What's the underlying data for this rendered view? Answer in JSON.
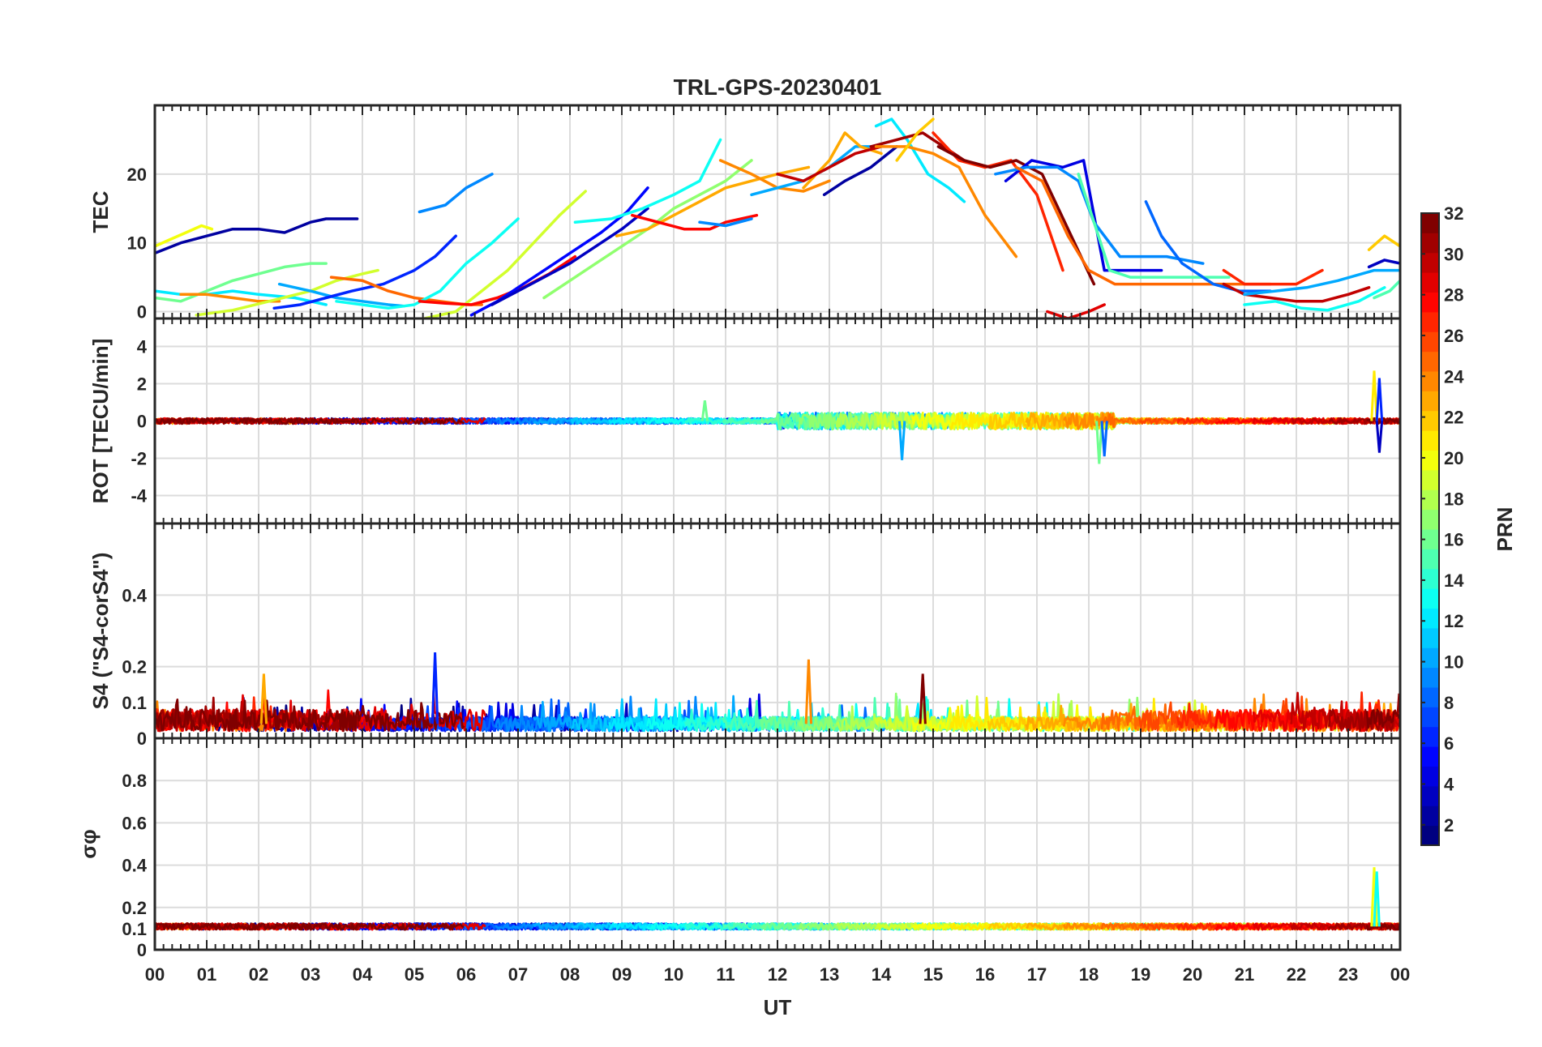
{
  "chart_data": {
    "title": "TRL-GPS-20230401",
    "type": "line",
    "xlabel": "UT",
    "x_ticks": [
      "00",
      "01",
      "02",
      "03",
      "04",
      "05",
      "06",
      "07",
      "08",
      "09",
      "10",
      "11",
      "12",
      "13",
      "14",
      "15",
      "16",
      "17",
      "18",
      "19",
      "20",
      "21",
      "22",
      "23",
      "00"
    ],
    "xlim": [
      0,
      24
    ],
    "colorbar": {
      "label": "PRN",
      "range": [
        1,
        32
      ],
      "ticks": [
        "2",
        "4",
        "6",
        "8",
        "10",
        "12",
        "14",
        "16",
        "18",
        "20",
        "22",
        "24",
        "26",
        "28",
        "30",
        "32"
      ],
      "colormap": "jet"
    },
    "panels": [
      {
        "name": "TEC",
        "ylabel": "TEC",
        "ylim": [
          -1,
          30
        ],
        "yticks": [
          "0",
          "10",
          "20"
        ],
        "series": [
          {
            "prn": 2,
            "x": [
              0,
              0.5,
              1,
              1.5,
              2,
              2.5,
              3,
              3.3,
              3.9
            ],
            "y": [
              8.5,
              10,
              11,
              12,
              12,
              11.5,
              13,
              13.5,
              13.5
            ]
          },
          {
            "prn": 20,
            "x": [
              0,
              0.3,
              0.6,
              0.9,
              1.1
            ],
            "y": [
              9.5,
              10.5,
              11.5,
              12.5,
              12
            ]
          },
          {
            "prn": 12,
            "x": [
              0,
              0.5,
              1,
              1.5,
              2,
              2.7,
              3.3
            ],
            "y": [
              3,
              2.5,
              2.5,
              3,
              2.5,
              2,
              1
            ]
          },
          {
            "prn": 16,
            "x": [
              0,
              0.5,
              1,
              1.5,
              2,
              2.5,
              3,
              3.3
            ],
            "y": [
              2,
              1.5,
              3,
              4.5,
              5.5,
              6.5,
              7,
              7
            ]
          },
          {
            "prn": 24,
            "x": [
              0.5,
              1,
              1.5,
              2,
              2.4
            ],
            "y": [
              2.5,
              2.5,
              2,
              1.5,
              1.5
            ]
          },
          {
            "prn": 19,
            "x": [
              0.8,
              1.5,
              2.2,
              3,
              3.5,
              4,
              4.3
            ],
            "y": [
              -0.5,
              0.2,
              1.5,
              3,
              4.5,
              5.5,
              6
            ]
          },
          {
            "prn": 10,
            "x": [
              2.4,
              3,
              3.5,
              4,
              4.5,
              4.8
            ],
            "y": [
              4,
              3,
              2,
              1.5,
              1,
              0.8
            ]
          },
          {
            "prn": 6,
            "x": [
              2.3,
              2.8,
              3.3,
              3.8,
              4.4,
              5,
              5.4,
              5.8
            ],
            "y": [
              0.5,
              1,
              2,
              3,
              4,
              6,
              8,
              11
            ]
          },
          {
            "prn": 25,
            "x": [
              3.4,
              4,
              4.5,
              5,
              5.5,
              6,
              6.3
            ],
            "y": [
              5,
              4.5,
              3,
              2,
              1.5,
              1,
              1
            ]
          },
          {
            "prn": 13,
            "x": [
              3.5,
              4,
              4.5,
              5,
              5.5,
              6,
              6.5,
              7
            ],
            "y": [
              1.5,
              1,
              0.5,
              1,
              3,
              7,
              10,
              13.5
            ]
          },
          {
            "prn": 9,
            "x": [
              5.1,
              5.6,
              6,
              6.5
            ],
            "y": [
              14.5,
              15.5,
              18,
              20
            ]
          },
          {
            "prn": 19,
            "x": [
              5.2,
              5.8,
              6.3,
              6.8,
              7.3,
              7.8,
              8.3
            ],
            "y": [
              -1,
              0,
              3,
              6,
              10,
              14,
              17.5
            ]
          },
          {
            "prn": 28,
            "x": [
              5.1,
              5.6,
              6.1,
              6.6,
              7.1,
              7.6,
              8.1
            ],
            "y": [
              1.5,
              1.2,
              1,
              2,
              3.5,
              5.5,
              8
            ]
          },
          {
            "prn": 5,
            "x": [
              6.1,
              6.6,
              7.1,
              7.6,
              8.1,
              8.6,
              9.1,
              9.5
            ],
            "y": [
              -0.5,
              1.5,
              4,
              6.5,
              9,
              11.5,
              14.5,
              18
            ]
          },
          {
            "prn": 3,
            "x": [
              6.5,
              7,
              7.5,
              8,
              8.5,
              9,
              9.5
            ],
            "y": [
              1,
              3,
              5,
              7,
              9.5,
              12,
              15
            ]
          },
          {
            "prn": 17,
            "x": [
              7.5,
              8,
              8.5,
              9,
              9.5,
              10,
              10.5,
              11,
              11.5
            ],
            "y": [
              2,
              4.5,
              7,
              9.5,
              12,
              15,
              17,
              19,
              22
            ]
          },
          {
            "prn": 13,
            "x": [
              8.1,
              8.8,
              9.4,
              10,
              10.5,
              10.9
            ],
            "y": [
              13,
              13.5,
              15,
              17,
              19,
              25
            ]
          },
          {
            "prn": 23,
            "x": [
              8.9,
              9.5,
              10,
              10.5,
              11,
              11.5,
              12,
              12.6
            ],
            "y": [
              11,
              12,
              14,
              16,
              18,
              19,
              20,
              21
            ]
          },
          {
            "prn": 28,
            "x": [
              9.2,
              9.7,
              10.2,
              10.7,
              11,
              11.6
            ],
            "y": [
              14,
              13,
              12,
              12,
              13,
              14
            ]
          },
          {
            "prn": 9,
            "x": [
              10.5,
              11,
              11.5
            ],
            "y": [
              13,
              12.5,
              13.5
            ]
          },
          {
            "prn": 24,
            "x": [
              10.9,
              11.5,
              12,
              12.5,
              13
            ],
            "y": [
              22,
              20,
              18,
              17.5,
              19
            ]
          },
          {
            "prn": 10,
            "x": [
              11.5,
              12,
              12.5,
              13,
              13.5,
              14
            ],
            "y": [
              17,
              18,
              19,
              21,
              24,
              24
            ]
          },
          {
            "prn": 23,
            "x": [
              12.5,
              13,
              13.3,
              13.6,
              14
            ],
            "y": [
              18,
              22,
              26,
              24,
              23
            ]
          },
          {
            "prn": 30,
            "x": [
              12,
              12.5,
              13,
              13.5,
              14
            ],
            "y": [
              20,
              19,
              21,
              23,
              24
            ]
          },
          {
            "prn": 2,
            "x": [
              12.9,
              13.3,
              13.8,
              14.3
            ],
            "y": [
              17,
              19,
              21,
              24
            ]
          },
          {
            "prn": 12,
            "x": [
              13.9,
              14.2,
              14.5,
              14.9,
              15.3,
              15.6
            ],
            "y": [
              27,
              28,
              25,
              20,
              18,
              16
            ]
          },
          {
            "prn": 31,
            "x": [
              13.8,
              14.3,
              14.8,
              15.2,
              15.6,
              16
            ],
            "y": [
              24,
              25,
              26,
              24,
              22,
              21
            ]
          },
          {
            "prn": 24,
            "x": [
              13.9,
              14.5,
              15,
              15.5,
              16,
              16.6
            ],
            "y": [
              24,
              24,
              23,
              21,
              14,
              8
            ]
          },
          {
            "prn": 22,
            "x": [
              14.3,
              14.7,
              15
            ],
            "y": [
              22,
              26,
              28
            ]
          },
          {
            "prn": 27,
            "x": [
              15,
              15.5,
              16,
              16.5,
              17,
              17.5
            ],
            "y": [
              26,
              22,
              21,
              22,
              17,
              6
            ]
          },
          {
            "prn": 32,
            "x": [
              15.1,
              15.6,
              16.1,
              16.6,
              17.1,
              17.6,
              18.1
            ],
            "y": [
              24,
              22,
              21,
              22,
              20,
              12,
              4
            ]
          },
          {
            "prn": 4,
            "x": [
              16.4,
              16.9,
              17.5,
              17.9,
              18.3,
              18.7,
              19.4
            ],
            "y": [
              19,
              22,
              21,
              22,
              6,
              6,
              6
            ]
          },
          {
            "prn": 9,
            "x": [
              16.2,
              16.8,
              17.4,
              17.8,
              18.1,
              18.6,
              19,
              19.5,
              20.2
            ],
            "y": [
              20,
              21,
              21,
              19,
              13,
              8,
              8,
              8,
              7
            ]
          },
          {
            "prn": 15,
            "x": [
              17.8,
              18.1,
              18.4,
              18.8,
              19.5,
              20,
              20.7
            ],
            "y": [
              20,
              13,
              6,
              5,
              5,
              5,
              5
            ]
          },
          {
            "prn": 25,
            "x": [
              16.6,
              17.1,
              17.6,
              18,
              18.5,
              19.5,
              20.5,
              21.5
            ],
            "y": [
              21,
              19,
              11,
              6,
              4,
              4,
              4,
              4
            ]
          },
          {
            "prn": 29,
            "x": [
              17.2,
              17.6,
              18,
              18.3
            ],
            "y": [
              0,
              -1,
              0,
              1
            ]
          },
          {
            "prn": 8,
            "x": [
              19.1,
              19.4,
              19.8,
              20.4,
              20.9,
              21.5
            ],
            "y": [
              16,
              11,
              7,
              4,
              3,
              3
            ]
          },
          {
            "prn": 27,
            "x": [
              20.6,
              21,
              21.5,
              22,
              22.5
            ],
            "y": [
              6,
              4,
              4,
              4,
              6
            ]
          },
          {
            "prn": 30,
            "x": [
              20.6,
              21,
              21.5,
              22,
              22.5,
              23,
              23.4
            ],
            "y": [
              4,
              2.5,
              2,
              1.5,
              1.5,
              2.5,
              3.5
            ]
          },
          {
            "prn": 10,
            "x": [
              21,
              21.6,
              22.2,
              22.8,
              23.5,
              24
            ],
            "y": [
              2.5,
              3,
              3.5,
              4.5,
              6,
              6
            ]
          },
          {
            "prn": 13,
            "x": [
              21,
              21.6,
              22.1,
              22.6,
              23.2,
              23.7
            ],
            "y": [
              1,
              1.5,
              0.5,
              0.2,
              1.5,
              3.5
            ]
          },
          {
            "prn": 22,
            "x": [
              23.4,
              23.7,
              24
            ],
            "y": [
              9,
              11,
              9.5
            ]
          },
          {
            "prn": 3,
            "x": [
              23.4,
              23.7,
              24
            ],
            "y": [
              6.5,
              7.5,
              7
            ]
          },
          {
            "prn": 15,
            "x": [
              23.5,
              23.8,
              24
            ],
            "y": [
              2,
              3,
              4.5
            ]
          }
        ]
      },
      {
        "name": "ROT",
        "ylabel": "ROT [TECU/min]",
        "ylim": [
          -5.5,
          5.5
        ],
        "yticks": [
          "-4",
          "-2",
          "0",
          "2",
          "4"
        ],
        "noise_profile": "rot",
        "spikes": [
          {
            "prn": 10,
            "x": 14.4,
            "y": -2.1
          },
          {
            "prn": 16,
            "x": 18.2,
            "y": -2.3
          },
          {
            "prn": 8,
            "x": 18.3,
            "y": -1.9
          },
          {
            "prn": 21,
            "x": 23.5,
            "y": 2.7
          },
          {
            "prn": 6,
            "x": 23.6,
            "y": 2.3
          },
          {
            "prn": 3,
            "x": 23.6,
            "y": -1.7
          },
          {
            "prn": 16,
            "x": 10.6,
            "y": 1.1
          }
        ]
      },
      {
        "name": "S4",
        "ylabel": "S4 (\"S4-corS4\")",
        "ylim": [
          0,
          0.6
        ],
        "yticks": [
          "0",
          "0.1",
          "0.2",
          "0.4"
        ],
        "noise_profile": "s4",
        "spikes": [
          {
            "prn": 6,
            "x": 5.4,
            "y": 0.24
          },
          {
            "prn": 24,
            "x": 12.6,
            "y": 0.22
          },
          {
            "prn": 23,
            "x": 2.1,
            "y": 0.18
          },
          {
            "prn": 32,
            "x": 14.8,
            "y": 0.18
          }
        ]
      },
      {
        "name": "sigma-phi",
        "ylabel": "σφ",
        "ylim": [
          0,
          1
        ],
        "yticks": [
          "0",
          "0.1",
          "0.2",
          "0.4",
          "0.6",
          "0.8"
        ],
        "noise_profile": "sigma",
        "spikes": [
          {
            "prn": 20,
            "x": 23.5,
            "y": 0.39
          },
          {
            "prn": 13,
            "x": 23.55,
            "y": 0.37
          }
        ]
      }
    ]
  }
}
